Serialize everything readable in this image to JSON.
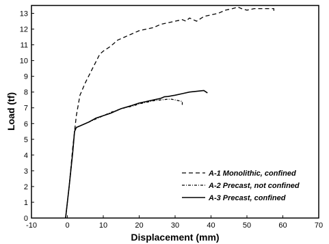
{
  "chart_data": {
    "type": "line",
    "xlabel": "Displacement (mm)",
    "ylabel": "Load (tf)",
    "xlim": [
      -10,
      70
    ],
    "ylim": [
      0,
      13.5
    ],
    "x_ticks": [
      -10,
      0,
      10,
      20,
      30,
      40,
      50,
      60,
      70
    ],
    "y_ticks": [
      0,
      1,
      2,
      3,
      4,
      5,
      6,
      7,
      8,
      9,
      10,
      11,
      12,
      13
    ],
    "grid": false,
    "legend_position": "bottom-right",
    "series": [
      {
        "name": "A-1 Monolithic, confined",
        "style": "dashed",
        "x": [
          -0.5,
          0.5,
          1.5,
          2.5,
          3.5,
          5,
          7,
          9,
          10,
          12,
          14,
          16,
          18,
          20,
          22,
          24,
          26,
          28,
          30,
          32,
          33,
          34,
          35,
          36,
          38,
          40,
          42,
          44,
          46,
          47.5,
          48.5,
          50,
          52,
          54,
          56,
          57.5,
          57.5
        ],
        "y": [
          0,
          2,
          4.5,
          6.5,
          7.8,
          8.6,
          9.5,
          10.4,
          10.6,
          10.9,
          11.3,
          11.5,
          11.7,
          11.9,
          12.0,
          12.1,
          12.3,
          12.4,
          12.5,
          12.6,
          12.5,
          12.7,
          12.6,
          12.5,
          12.8,
          12.9,
          13.0,
          13.2,
          13.3,
          13.4,
          13.3,
          13.2,
          13.3,
          13.3,
          13.3,
          13.3,
          13.1
        ]
      },
      {
        "name": "A-2 Precast, not confined",
        "style": "dash-dot",
        "x": [
          -0.5,
          0.5,
          1.5,
          2.0,
          2.5,
          4,
          6,
          8,
          10,
          12,
          15,
          18,
          20,
          22,
          24,
          26,
          28,
          29,
          30,
          31,
          32,
          32
        ],
        "y": [
          0,
          2,
          4.2,
          5.5,
          5.75,
          5.9,
          6.1,
          6.3,
          6.5,
          6.7,
          6.95,
          7.1,
          7.25,
          7.35,
          7.45,
          7.5,
          7.55,
          7.55,
          7.5,
          7.45,
          7.4,
          7.15
        ]
      },
      {
        "name": "A-3 Precast, confined",
        "style": "solid",
        "x": [
          -0.5,
          0.5,
          1.5,
          2.0,
          2.5,
          4,
          6,
          8,
          10,
          12,
          15,
          18,
          20,
          22,
          24,
          26,
          27,
          28,
          30,
          32,
          34,
          36,
          38,
          39
        ],
        "y": [
          0,
          2,
          4.2,
          5.5,
          5.75,
          5.9,
          6.1,
          6.35,
          6.5,
          6.65,
          6.95,
          7.15,
          7.3,
          7.4,
          7.5,
          7.6,
          7.7,
          7.72,
          7.8,
          7.9,
          8.0,
          8.05,
          8.1,
          7.95
        ]
      }
    ]
  }
}
